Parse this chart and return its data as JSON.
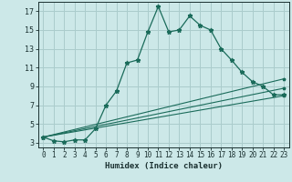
{
  "xlabel": "Humidex (Indice chaleur)",
  "bg_color": "#cce8e8",
  "grid_color": "#aacccc",
  "line_color": "#1a6b5a",
  "xlim": [
    -0.5,
    23.5
  ],
  "ylim": [
    2.5,
    18.0
  ],
  "xticks": [
    0,
    1,
    2,
    3,
    4,
    5,
    6,
    7,
    8,
    9,
    10,
    11,
    12,
    13,
    14,
    15,
    16,
    17,
    18,
    19,
    20,
    21,
    22,
    23
  ],
  "yticks": [
    3,
    5,
    7,
    9,
    11,
    13,
    15,
    17
  ],
  "series": [
    {
      "x": [
        0,
        1,
        2,
        3,
        4,
        5,
        6,
        7,
        8,
        9,
        10,
        11,
        12,
        13,
        14,
        15,
        16,
        17,
        18,
        19,
        20,
        21,
        22,
        23
      ],
      "y": [
        3.6,
        3.2,
        3.1,
        3.3,
        3.3,
        4.5,
        7.0,
        8.5,
        11.5,
        11.8,
        14.8,
        17.5,
        14.8,
        15.0,
        16.5,
        15.5,
        15.0,
        13.0,
        11.8,
        10.5,
        9.5,
        9.0,
        8.1,
        8.1
      ]
    },
    {
      "x": [
        0,
        23
      ],
      "y": [
        3.6,
        9.8
      ]
    },
    {
      "x": [
        0,
        23
      ],
      "y": [
        3.6,
        8.8
      ]
    },
    {
      "x": [
        0,
        23
      ],
      "y": [
        3.6,
        8.0
      ]
    }
  ]
}
